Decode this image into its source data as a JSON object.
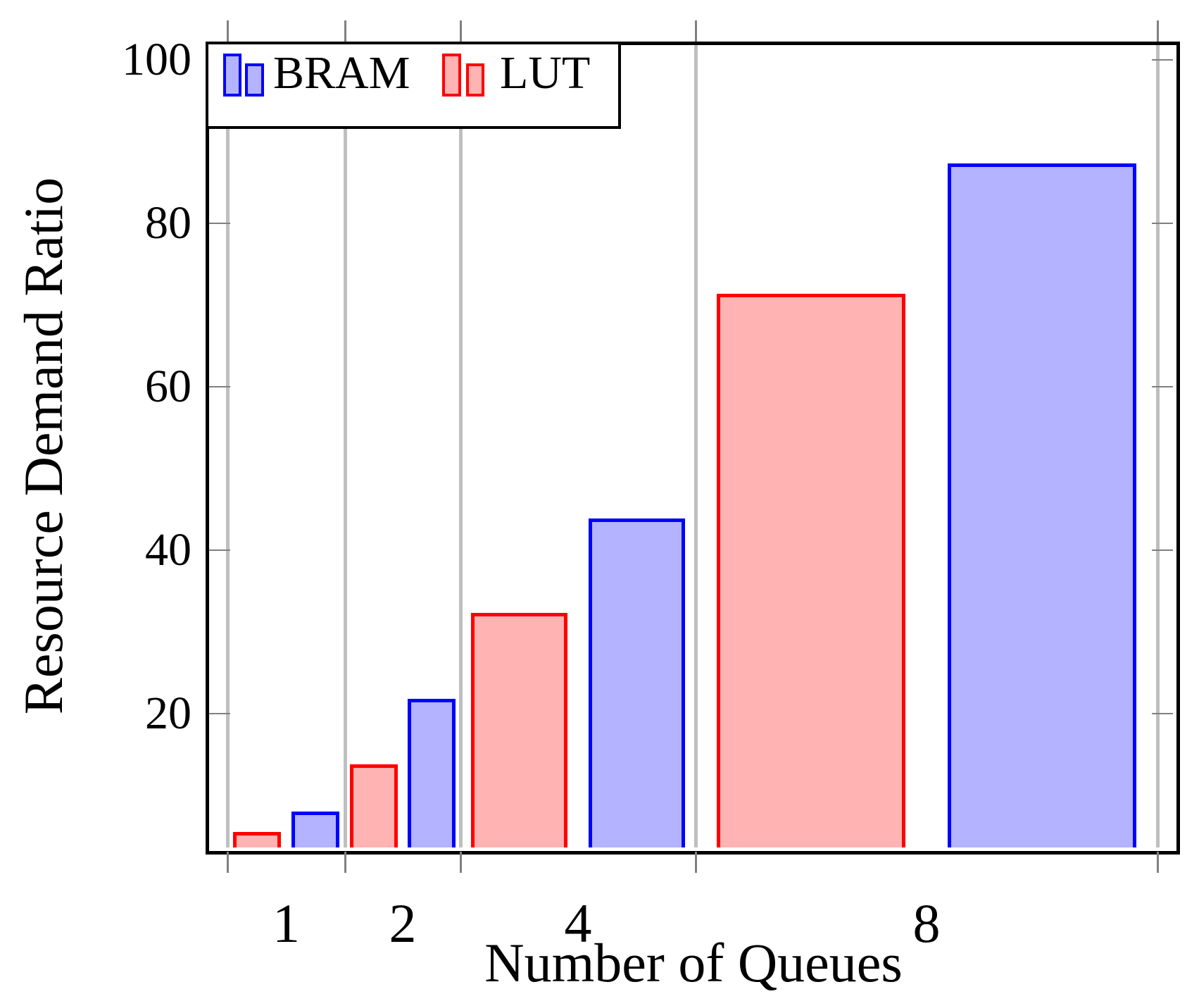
{
  "chart_data": {
    "type": "bar",
    "title": "",
    "xlabel": "Number of Queues",
    "ylabel": "Resource Demand Ratio",
    "categories": [
      "1",
      "2",
      "4",
      "8"
    ],
    "series": [
      {
        "name": "LUT",
        "border_color": "#FF0000",
        "fill_color": "#FFB3B3",
        "values": [
          2.3,
          12.4,
          32.3,
          71.4
        ]
      },
      {
        "name": "BRAM",
        "border_color": "#0000FF",
        "fill_color": "#B3B3FF",
        "values": [
          5.4,
          21.8,
          43.9,
          87.3
        ]
      }
    ],
    "bar_group_order": [
      "LUT",
      "BRAM"
    ],
    "y_ticks": [
      20,
      40,
      60,
      80,
      100
    ],
    "ylim": [
      0,
      102
    ],
    "grid": "vertical",
    "gridline_color": "#BFBFBF",
    "tick_color": "#808080",
    "axis_color": "#000000",
    "legend_position": "top-left"
  },
  "legend": {
    "items": [
      {
        "label": "BRAM",
        "series": "BRAM"
      },
      {
        "label": "LUT",
        "series": "LUT"
      }
    ]
  }
}
